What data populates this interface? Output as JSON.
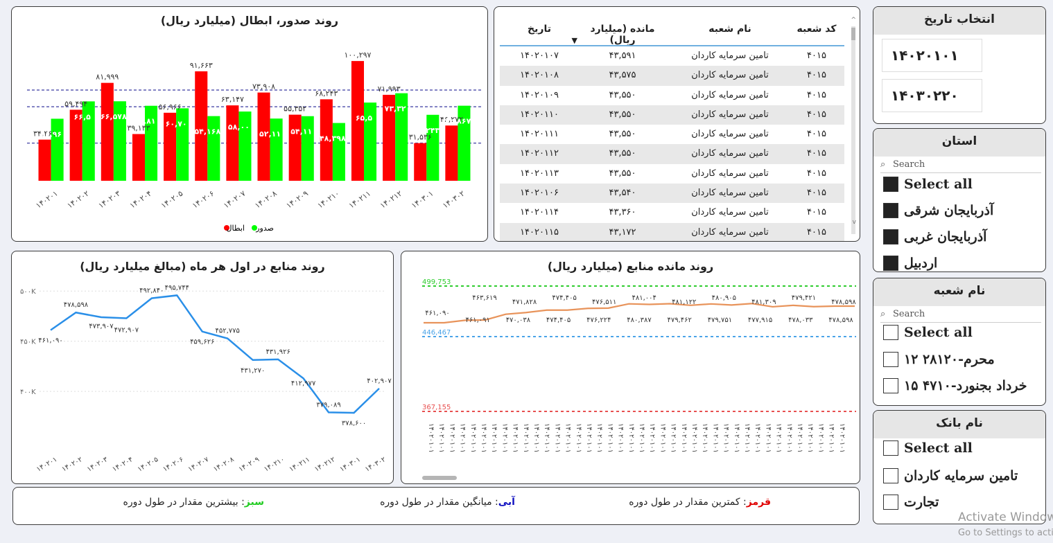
{
  "chart1": {
    "title": "روند صدور، ابطال (میلیارد ریال)",
    "categories": [
      "۱۴۰۲۰۱",
      "۱۴۰۲۰۲",
      "۱۴۰۲۰۳",
      "۱۴۰۲۰۴",
      "۱۴۰۲۰۵",
      "۱۴۰۲۰۶",
      "۱۴۰۲۰۷",
      "۱۴۰۲۰۸",
      "۱۴۰۲۰۹",
      "۱۴۰۲۱۰",
      "۱۴۰۲۱۱",
      "۱۴۰۲۱۲",
      "۱۴۰۳۰۱",
      "۱۴۰۳۰۲"
    ],
    "cancel_labels": [
      "۳۴,۴۶۱",
      "۵۹,۴۹۴",
      "۸۱,۹۹۹",
      "۳۹,۱۳۳",
      "۵۶,۹۶۶",
      "۹۱,۶۶۳",
      "۶۳,۱۴۷",
      "۷۳,۹۰۸",
      "۵۵,۳۵۲",
      "۶۸,۲۴۳",
      "۱۰۰,۲۹۷",
      "۷۱,۹۹۳",
      "۳۱,۵۳۶",
      "۴۶,۲۷۲"
    ],
    "issue_labels": [
      "۵۱,۹۶",
      "۶۶,۵",
      "۶۶,۵۷۸",
      "۶۲,۸۱",
      "۶۰,۷۰",
      "۵۴,۱۶۸",
      "۵۸,۰۰",
      "۵۲,۱۱",
      "۵۴,۱۱",
      "۴۸,۳۹۸",
      "۶۵,۵",
      "۷۳,۳۲",
      "۵۵,۲۴۳",
      "۶۲,۸۶۷"
    ],
    "legend_cancel": "ابطال",
    "legend_issue": "صدور",
    "colors": {
      "cancel": "#ff0000",
      "issue": "#00ff00",
      "ref": "#5a5ab0"
    }
  },
  "chart_data": [
    {
      "type": "bar",
      "title": "روند صدور، ابطال (میلیارد ریال)",
      "categories": [
        "۱۴۰۲۰۱",
        "۱۴۰۲۰۲",
        "۱۴۰۲۰۳",
        "۱۴۰۲۰۴",
        "۱۴۰۲۰۵",
        "۱۴۰۲۰۶",
        "۱۴۰۲۰۷",
        "۱۴۰۲۰۸",
        "۱۴۰۲۰۹",
        "۱۴۰۲۱۰",
        "۱۴۰۲۱۱",
        "۱۴۰۲۱۲",
        "۱۴۰۳۰۱",
        "۱۴۰۳۰۲"
      ],
      "series": [
        {
          "name": "ابطال",
          "values": [
            34461,
            59494,
            81999,
            39133,
            56966,
            91663,
            63147,
            73908,
            55352,
            68243,
            100297,
            71993,
            31536,
            46272
          ]
        },
        {
          "name": "صدور",
          "values": [
            51960,
            66500,
            66578,
            62810,
            60700,
            54168,
            58000,
            52110,
            54110,
            48398,
            65500,
            73320,
            55243,
            62867
          ]
        }
      ],
      "ylim": [
        0,
        105000
      ],
      "reference_lines": [
        31536,
        62000,
        76000
      ]
    },
    {
      "type": "line",
      "title": "روند منابع در اول هر ماه (مبالغ میلیارد ریال)",
      "categories": [
        "۱۴۰۲۰۱",
        "۱۴۰۲۰۲",
        "۱۴۰۲۰۳",
        "۱۴۰۲۰۴",
        "۱۴۰۲۰۵",
        "۱۴۰۲۰۶",
        "۱۴۰۲۰۷",
        "۱۴۰۲۰۸",
        "۱۴۰۲۰۹",
        "۱۴۰۲۱۰",
        "۱۴۰۲۱۱",
        "۱۴۰۲۱۲",
        "۱۴۰۳۰۱",
        "۱۴۰۳۰۲"
      ],
      "values": [
        461090,
        478598,
        473907,
        472907,
        492840,
        495744,
        459626,
        452775,
        431270,
        431926,
        412977,
        379089,
        378600,
        402907
      ],
      "value_labels": [
        "۴۶۱,۰۹۰",
        "۴۷۸,۵۹۸",
        "۴۷۳,۹۰۷",
        "۴۷۲,۹۰۷",
        "۴۹۲,۸۴۰",
        "۴۹۵,۷۴۴",
        "۴۵۹,۶۲۶",
        "۴۵۲,۷۷۵",
        "۴۳۱,۲۷۰",
        "۴۳۱,۹۲۶",
        "۴۱۲,۹۷۷",
        "۳۷۹,۰۸۹",
        "۳۷۸,۶۰۰",
        "۴۰۲,۹۰۷"
      ],
      "yticks": [
        "۵۰۰K",
        "۴۵۰K",
        "۴۰۰K"
      ],
      "ylim": [
        360000,
        505000
      ]
    },
    {
      "type": "line",
      "title": "روند مانده منابع (میلیارد ریال)",
      "values": [
        461090,
        461091,
        463619,
        464000,
        470038,
        471828,
        474405,
        474405,
        476224,
        476511,
        481004,
        480387,
        481122,
        479462,
        480905,
        479751,
        481309,
        477915,
        479421,
        478033,
        478598,
        478598
      ],
      "value_labels_top": [
        "۴۶۳,۶۱۹",
        "۴۷۱,۸۲۸",
        "۴۷۴,۴۰۵",
        "۴۷۶,۵۱۱",
        "۴۸۱,۰۰۴",
        "۴۸۱,۱۲۲",
        "۴۸۰,۹۰۵",
        "۴۸۱,۳۰۹",
        "۴۷۹,۴۲۱",
        "۴۷۸,۵۹۸"
      ],
      "value_labels_bottom": [
        "۴۶۱,۰۹۰",
        "۴۶۱,۰۹۱",
        "۴۷۰,۰۳۸",
        "۴۷۴,۴۰۵",
        "۴۷۶,۲۲۴",
        "۴۸۰,۳۸۷",
        "۴۷۹,۴۶۲",
        "۴۷۹,۷۵۱",
        "۴۷۷,۹۱۵",
        "۴۷۸,۰۳۳",
        "۴۷۸,۵۹۸"
      ],
      "reference_lines": [
        {
          "label": "499,753",
          "value": 499753,
          "color": "#2ecc2e"
        },
        {
          "label": "446,467",
          "value": 446467,
          "color": "#4aa3e8"
        },
        {
          "label": "367,155",
          "value": 367155,
          "color": "#e85050"
        }
      ],
      "ylim": [
        340000,
        505000
      ]
    }
  ],
  "chart2": {
    "title": "روند منابع در اول هر ماه (مبالغ میلیارد ریال)"
  },
  "chart3": {
    "title": "روند مانده منابع (میلیارد ریال)",
    "xlabel_sample": "۱۴۰۲۰۱۰۱"
  },
  "table": {
    "headers": {
      "code": "کد شعبه",
      "name": "نام شعبه",
      "remain": "مانده (میلیارد ریال)",
      "date": "تاریخ"
    },
    "rows": [
      {
        "code": "۴۰۱۵",
        "name": "تامین سرمایه کاردان",
        "remain": "۴۳,۵۹۱",
        "date": "۱۴۰۲۰۱۰۷"
      },
      {
        "code": "۴۰۱۵",
        "name": "تامین سرمایه کاردان",
        "remain": "۴۳,۵۷۵",
        "date": "۱۴۰۲۰۱۰۸"
      },
      {
        "code": "۴۰۱۵",
        "name": "تامین سرمایه کاردان",
        "remain": "۴۳,۵۵۰",
        "date": "۱۴۰۲۰۱۰۹"
      },
      {
        "code": "۴۰۱۵",
        "name": "تامین سرمایه کاردان",
        "remain": "۴۳,۵۵۰",
        "date": "۱۴۰۲۰۱۱۰"
      },
      {
        "code": "۴۰۱۵",
        "name": "تامین سرمایه کاردان",
        "remain": "۴۳,۵۵۰",
        "date": "۱۴۰۲۰۱۱۱"
      },
      {
        "code": "۴۰۱۵",
        "name": "تامین سرمایه کاردان",
        "remain": "۴۳,۵۵۰",
        "date": "۱۴۰۲۰۱۱۲"
      },
      {
        "code": "۴۰۱۵",
        "name": "تامین سرمایه کاردان",
        "remain": "۴۳,۵۵۰",
        "date": "۱۴۰۲۰۱۱۳"
      },
      {
        "code": "۴۰۱۵",
        "name": "تامین سرمایه کاردان",
        "remain": "۴۳,۵۴۰",
        "date": "۱۴۰۲۰۱۰۶"
      },
      {
        "code": "۴۰۱۵",
        "name": "تامین سرمایه کاردان",
        "remain": "۴۳,۳۶۰",
        "date": "۱۴۰۲۰۱۱۴"
      },
      {
        "code": "۴۰۱۵",
        "name": "تامین سرمایه کاردان",
        "remain": "۴۳,۱۷۲",
        "date": "۱۴۰۲۰۱۱۵"
      }
    ]
  },
  "date_slicer": {
    "title": "انتخاب تاریخ",
    "start": "۱۴۰۲۰۱۰۱",
    "end": "۱۴۰۳۰۲۲۰"
  },
  "province_slicer": {
    "title": "استان",
    "search_placeholder": "Search",
    "select_all": "Select all",
    "items": [
      "آذربایجان شرقی",
      "آذربایجان غربی",
      "اردبیل"
    ]
  },
  "branch_slicer": {
    "title": "نام شعبه",
    "search_placeholder": "Search",
    "select_all": "Select all",
    "items": [
      "محرم-۲۸۱۲۰ ۱۲",
      "خرداد بجنورد-۴۷۱۰ ۱۵"
    ]
  },
  "bank_slicer": {
    "title": "نام بانک",
    "select_all": "Select all",
    "items": [
      "تامین سرمایه کاردان",
      "تجارت"
    ]
  },
  "legend": {
    "red_label": "قرمز",
    "red_text": ": کمترین مقدار در طول دوره",
    "blue_label": "آبی",
    "blue_text": ": میانگین مقدار در طول دوره",
    "green_label": "سبز",
    "green_text": ": بیشترین مقدار در طول دوره"
  },
  "watermark": {
    "line1": "Activate Windows",
    "line2": "Go to Settings to activate Windows."
  }
}
